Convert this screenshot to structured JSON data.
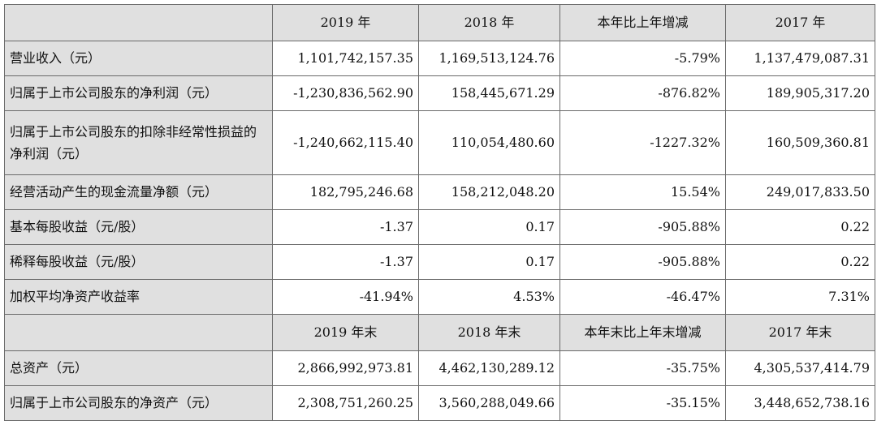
{
  "header1": {
    "blank": "",
    "cols": [
      "2019 年",
      "2018 年",
      "本年比上年增减",
      "2017 年"
    ]
  },
  "rows1": [
    {
      "label": "营业收入（元）",
      "values": [
        "1,101,742,157.35",
        "1,169,513,124.76",
        "-5.79%",
        "1,137,479,087.31"
      ]
    },
    {
      "label": "归属于上市公司股东的净利润（元）",
      "values": [
        "-1,230,836,562.90",
        "158,445,671.29",
        "-876.82%",
        "189,905,317.20"
      ]
    },
    {
      "label": "归属于上市公司股东的扣除非经常性损益的净利润（元）",
      "values": [
        "-1,240,662,115.40",
        "110,054,480.60",
        "-1227.32%",
        "160,509,360.81"
      ]
    },
    {
      "label": "经营活动产生的现金流量净额（元）",
      "values": [
        "182,795,246.68",
        "158,212,048.20",
        "15.54%",
        "249,017,833.50"
      ]
    },
    {
      "label": "基本每股收益（元/股）",
      "values": [
        "-1.37",
        "0.17",
        "-905.88%",
        "0.22"
      ]
    },
    {
      "label": "稀释每股收益（元/股）",
      "values": [
        "-1.37",
        "0.17",
        "-905.88%",
        "0.22"
      ]
    },
    {
      "label": "加权平均净资产收益率",
      "values": [
        "-41.94%",
        "4.53%",
        "-46.47%",
        "7.31%"
      ]
    }
  ],
  "header2": {
    "blank": "",
    "cols": [
      "2019 年末",
      "2018 年末",
      "本年末比上年末增减",
      "2017 年末"
    ]
  },
  "rows2": [
    {
      "label": "总资产（元）",
      "values": [
        "2,866,992,973.81",
        "4,462,130,289.12",
        "-35.75%",
        "4,305,537,414.79"
      ]
    },
    {
      "label": "归属于上市公司股东的净资产（元）",
      "values": [
        "2,308,751,260.25",
        "3,560,288,049.66",
        "-35.15%",
        "3,448,652,738.16"
      ]
    }
  ]
}
